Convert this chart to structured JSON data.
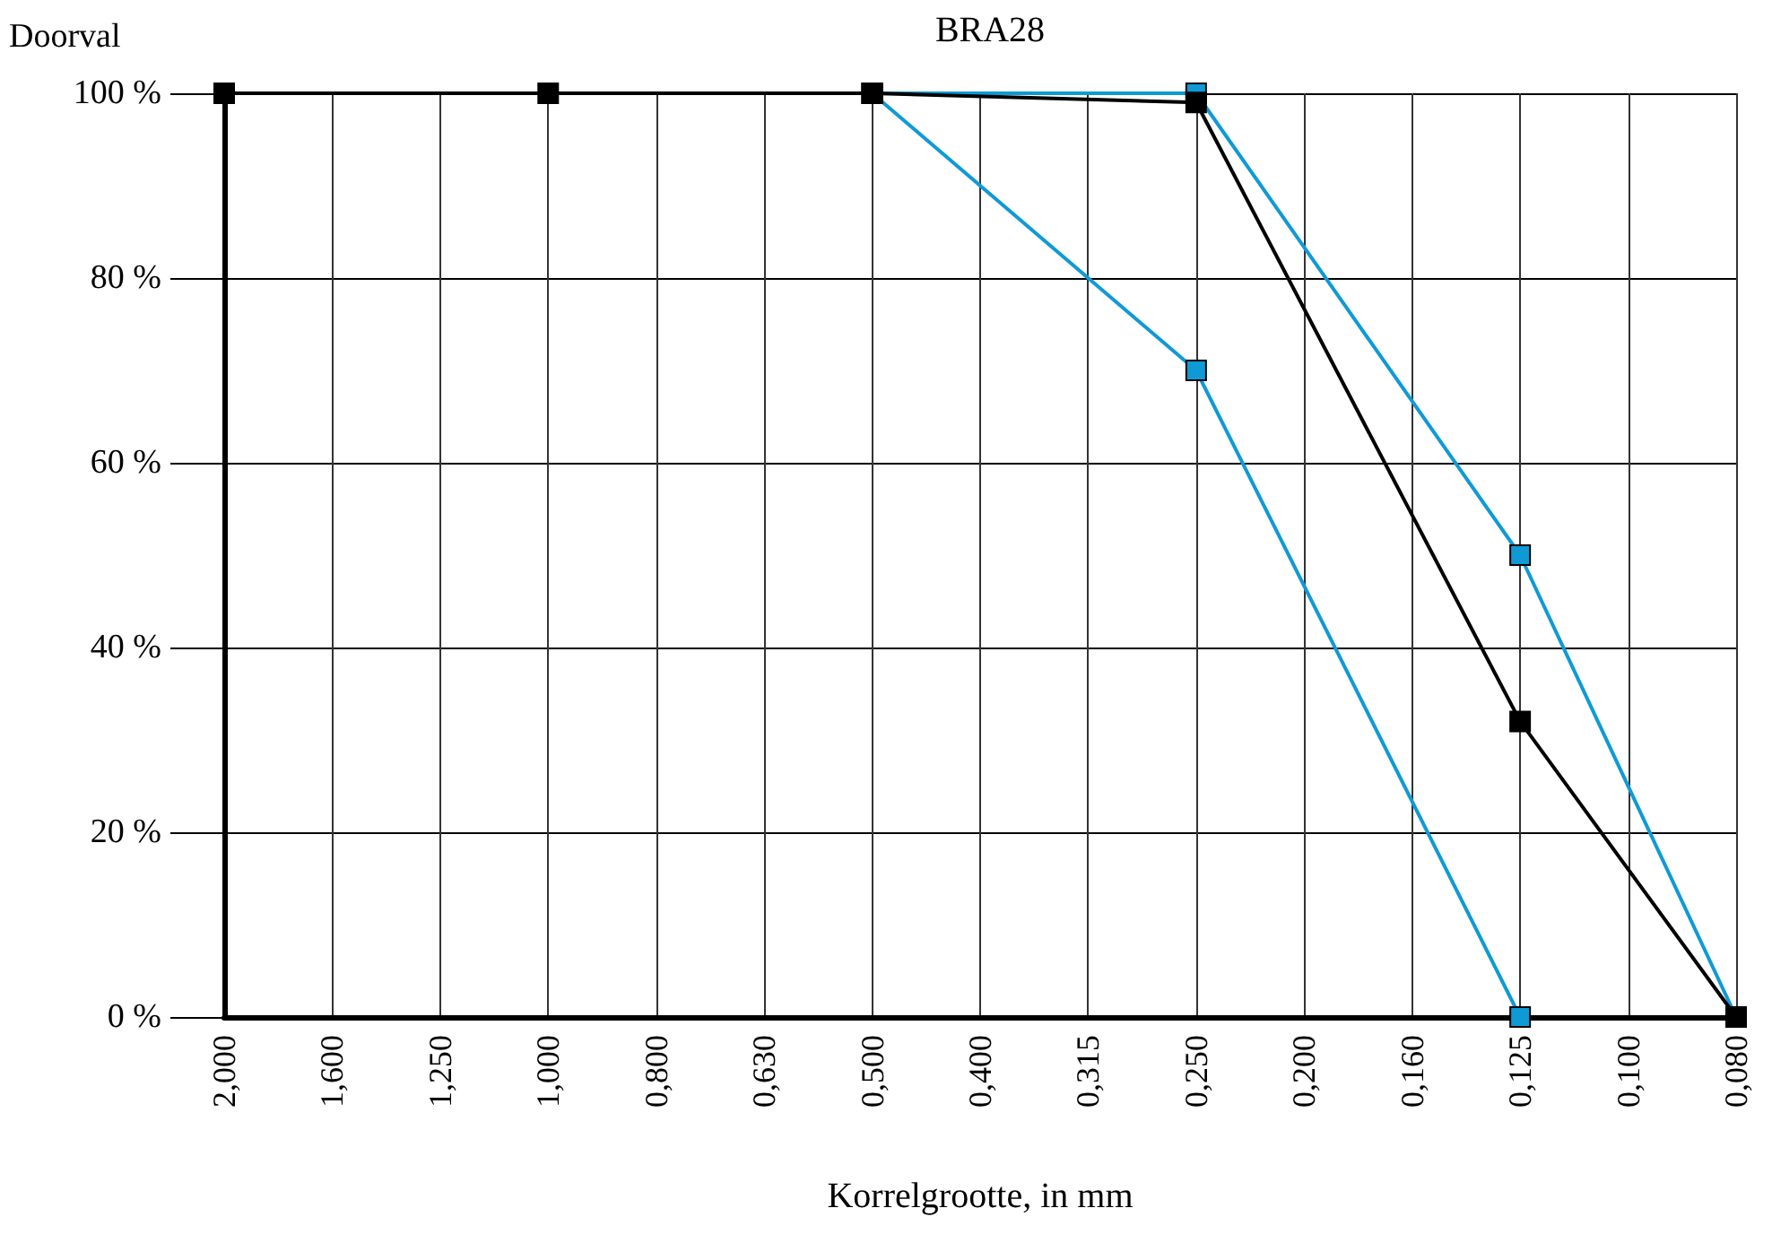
{
  "chart_data": {
    "type": "line",
    "title": "BRA28",
    "ylabel": "Doorval",
    "xlabel": "Korrelgrootte, in mm",
    "categories": [
      "2,000",
      "1,600",
      "1,250",
      "1,000",
      "0,800",
      "0,630",
      "0,500",
      "0,400",
      "0,315",
      "0,250",
      "0,200",
      "0,160",
      "0,125",
      "0,100",
      "0,080"
    ],
    "series": [
      {
        "color": "#0f9ad6",
        "values": [
          null,
          null,
          null,
          null,
          null,
          null,
          100,
          null,
          null,
          100,
          null,
          null,
          50,
          null,
          0
        ]
      },
      {
        "color": "#0f9ad6",
        "values": [
          null,
          null,
          null,
          null,
          null,
          null,
          100,
          null,
          null,
          70,
          null,
          null,
          0,
          null,
          null
        ]
      },
      {
        "color": "#000000",
        "values": [
          100,
          null,
          null,
          100,
          null,
          null,
          100,
          null,
          null,
          99,
          null,
          null,
          32,
          null,
          0
        ]
      }
    ],
    "ylim": [
      0,
      100
    ],
    "yticks": [
      {
        "value": 0,
        "label": "0 %"
      },
      {
        "value": 20,
        "label": "20 %"
      },
      {
        "value": 40,
        "label": "40 %"
      },
      {
        "value": 60,
        "label": "60 %"
      },
      {
        "value": 80,
        "label": "80 %"
      },
      {
        "value": 100,
        "label": "100 %"
      }
    ],
    "grid": true,
    "marker": "square",
    "line_style": "solid"
  }
}
